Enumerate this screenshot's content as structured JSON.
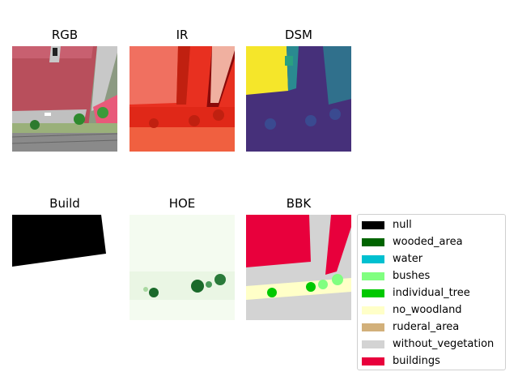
{
  "panels": [
    {
      "id": "rgb",
      "title": "RGB"
    },
    {
      "id": "ir",
      "title": "IR"
    },
    {
      "id": "dsm",
      "title": "DSM"
    },
    {
      "id": "build",
      "title": "Build"
    },
    {
      "id": "hoe",
      "title": "HOE"
    },
    {
      "id": "bbk",
      "title": "BBK"
    }
  ],
  "legend": {
    "items": [
      {
        "label": "null",
        "color": "#000000"
      },
      {
        "label": "wooded_area",
        "color": "#006400"
      },
      {
        "label": "water",
        "color": "#00c0d0"
      },
      {
        "label": "bushes",
        "color": "#80ff80"
      },
      {
        "label": "individual_tree",
        "color": "#00c800"
      },
      {
        "label": "no_woodland",
        "color": "#ffffc8"
      },
      {
        "label": "ruderal_area",
        "color": "#d2b07a"
      },
      {
        "label": "without_vegetation",
        "color": "#d3d3d3"
      },
      {
        "label": "buildings",
        "color": "#e8003c"
      }
    ]
  }
}
